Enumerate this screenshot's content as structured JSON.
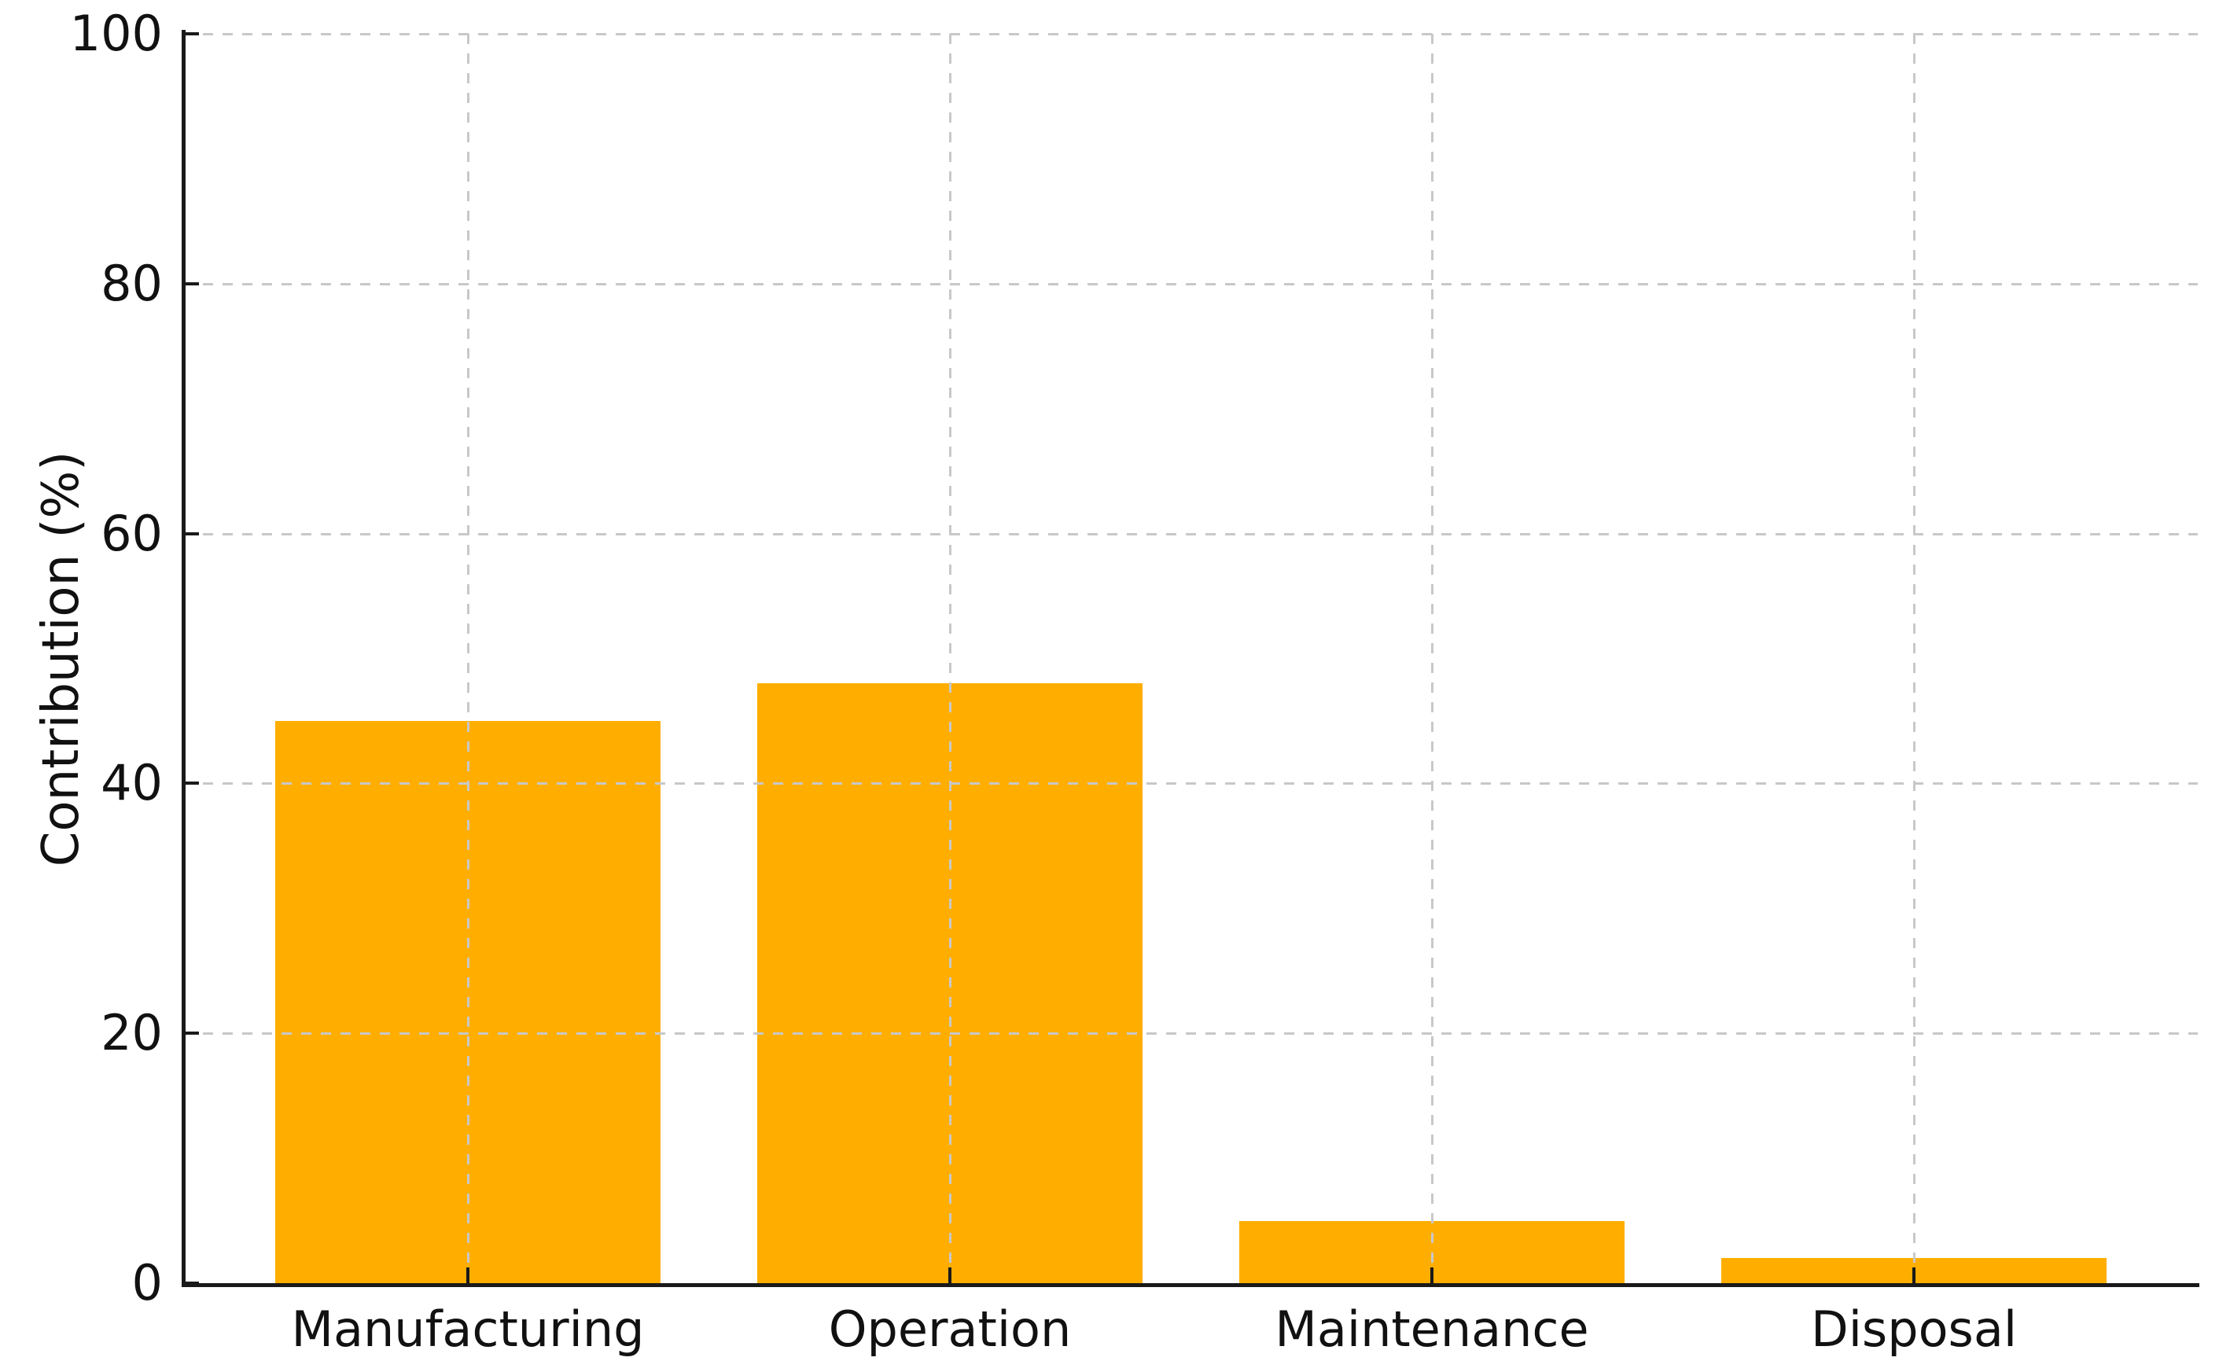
{
  "chart_data": {
    "type": "bar",
    "categories": [
      "Manufacturing",
      "Operation",
      "Maintenance",
      "Disposal"
    ],
    "values": [
      45,
      48,
      5,
      2
    ],
    "title": "",
    "xlabel": "",
    "ylabel": "Contribution (%)",
    "ylim": [
      0,
      100
    ],
    "yticks": [
      0,
      20,
      40,
      60,
      80,
      100
    ],
    "legend": "none",
    "grid": "dashed, both axes, drawn above bars",
    "colors": {
      "bar": "#FFAE00",
      "grid": "#c8c8c8",
      "axis": "#1a1a1a",
      "text": "#111111",
      "background": "#ffffff"
    }
  }
}
